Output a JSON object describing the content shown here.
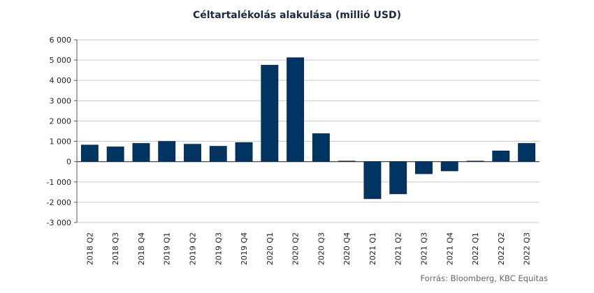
{
  "chart_data": {
    "type": "bar",
    "title": "Céltartalékolás alakulása (millió USD)",
    "source": "Forrás: Bloomberg, KBC Equitas",
    "categories": [
      "2018 Q2",
      "2018 Q3",
      "2018 Q4",
      "2019 Q1",
      "2019 Q2",
      "2019 Q3",
      "2019 Q4",
      "2020 Q1",
      "2020 Q2",
      "2020 Q3",
      "2020 Q4",
      "2021 Q1",
      "2021 Q2",
      "2021 Q3",
      "2021 Q4",
      "2022 Q1",
      "2022 Q2",
      "2022 Q3"
    ],
    "values": [
      820,
      730,
      900,
      1000,
      860,
      760,
      940,
      4750,
      5120,
      1380,
      30,
      -1830,
      -1590,
      -600,
      -460,
      30,
      530,
      900
    ],
    "ylim": [
      -3000,
      6000
    ],
    "yticks": [
      -3000,
      -2000,
      -1000,
      0,
      1000,
      2000,
      3000,
      4000,
      5000,
      6000
    ],
    "ytick_labels": [
      "-3 000",
      "-2 000",
      "-1 000",
      "0",
      "1 000",
      "2 000",
      "3 000",
      "4 000",
      "5 000",
      "6 000"
    ],
    "bar_color": "#003463",
    "grid": true,
    "xlabel": "",
    "ylabel": ""
  }
}
